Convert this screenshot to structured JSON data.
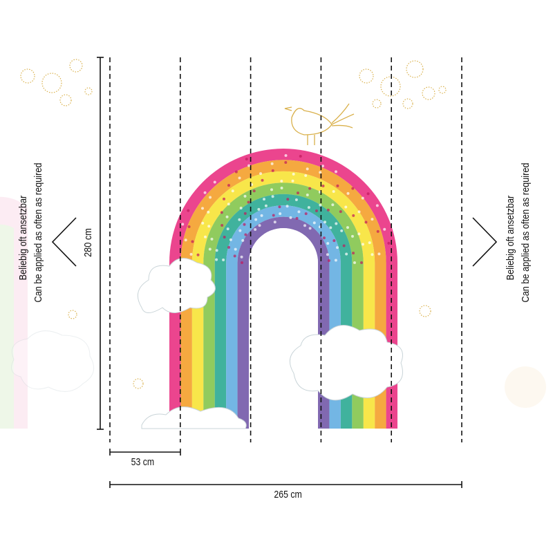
{
  "dimensions": {
    "height": "280 cm",
    "panel_width": "53 cm",
    "total_width": "265 cm"
  },
  "repeat_note": {
    "german": "Beliebig oft ansetzbar",
    "english": "Can be applied as often as required"
  },
  "panel_count": 5,
  "colors": {
    "rainbow": [
      "#e8247a",
      "#f39a1e",
      "#f7e22a",
      "#7cc242",
      "#1fa58c",
      "#5aa9df",
      "#6b4fa3"
    ],
    "gold": "#d9b04a",
    "line": "#111111"
  }
}
